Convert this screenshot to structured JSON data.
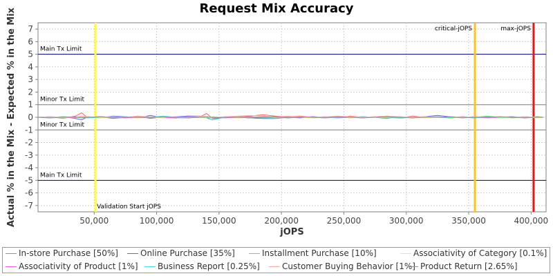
{
  "chart_data": {
    "type": "line",
    "title": "Request Mix Accuracy",
    "xlabel": "jOPS",
    "ylabel": "Actual % in the Mix - Expected % in the Mix",
    "xlim": [
      5000,
      412000
    ],
    "ylim": [
      -7.5,
      7.5
    ],
    "x_ticks": [
      50000,
      100000,
      150000,
      200000,
      250000,
      300000,
      350000,
      400000
    ],
    "x_tick_labels": [
      "50,000",
      "100,000",
      "150,000",
      "200,000",
      "250,000",
      "300,000",
      "350,000",
      "400,000"
    ],
    "y_ticks": [
      -7,
      -6,
      -5,
      -4,
      -3,
      -2,
      -1,
      0,
      1,
      2,
      3,
      4,
      5,
      6,
      7
    ],
    "y_tick_labels": [
      "-7",
      "-6",
      "-5",
      "-4",
      "-3",
      "-2",
      "-1",
      "0",
      "1",
      "2",
      "3",
      "4",
      "5",
      "6",
      "7"
    ],
    "grid": true,
    "horizontal_markers": [
      {
        "label": "Main Tx Limit",
        "y": 5,
        "color": "#000080"
      },
      {
        "label": "Minor Tx Limit",
        "y": 1,
        "color": "#808080"
      },
      {
        "label": "Minor Tx Limit",
        "y": -1,
        "color": "#808080"
      },
      {
        "label": "Main Tx Limit",
        "y": -5,
        "color": "#000080"
      }
    ],
    "vertical_markers": [
      {
        "label": "Validation Start jOPS",
        "x": 51000,
        "color": "#ffff33"
      },
      {
        "label": "critical-jOPS",
        "x": 355000,
        "color": "#ffc020"
      },
      {
        "label": "max-jOPS",
        "x": 402000,
        "color": "#e8141c"
      }
    ],
    "x": [
      5000,
      15000,
      25000,
      35000,
      40000,
      45000,
      55000,
      65000,
      75000,
      85000,
      95000,
      105000,
      115000,
      125000,
      135000,
      140000,
      145000,
      155000,
      165000,
      175000,
      185000,
      195000,
      205000,
      215000,
      225000,
      235000,
      245000,
      255000,
      265000,
      275000,
      285000,
      295000,
      305000,
      315000,
      325000,
      335000,
      345000,
      355000,
      365000,
      375000,
      385000,
      395000,
      405000,
      410000
    ],
    "series": [
      {
        "name": "In-store Purchase [50%]",
        "color": "#ff6060",
        "values": [
          0.0,
          0.05,
          -0.1,
          0.1,
          0.35,
          -0.05,
          0.05,
          -0.1,
          0.0,
          0.1,
          -0.1,
          0.05,
          0.0,
          0.1,
          0.05,
          0.3,
          -0.1,
          0.0,
          0.05,
          0.1,
          0.2,
          0.1,
          0.05,
          0.1,
          0.0,
          0.05,
          -0.05,
          0.1,
          0.0,
          0.05,
          0.1,
          -0.05,
          0.1,
          0.0,
          0.05,
          -0.05,
          0.0,
          0.05,
          0.0,
          -0.05,
          0.0,
          0.05,
          0.0,
          0.0
        ]
      },
      {
        "name": "Online Purchase [35%]",
        "color": "#6060ff",
        "values": [
          0.0,
          -0.05,
          0.05,
          -0.1,
          -0.2,
          0.05,
          -0.05,
          0.1,
          0.05,
          -0.05,
          0.15,
          -0.05,
          0.05,
          0.1,
          0.1,
          -0.05,
          -0.2,
          0.05,
          0.0,
          -0.05,
          -0.1,
          -0.1,
          0.0,
          -0.05,
          0.05,
          0.0,
          0.05,
          -0.05,
          0.05,
          0.0,
          -0.1,
          0.05,
          -0.05,
          0.05,
          0.15,
          0.05,
          0.0,
          -0.05,
          0.05,
          0.0,
          0.05,
          -0.05,
          0.05,
          0.0
        ]
      },
      {
        "name": "Installment Purchase [10%]",
        "color": "#60e060",
        "values": [
          0.0,
          0.0,
          0.05,
          0.0,
          -0.05,
          0.0,
          0.05,
          0.0,
          -0.05,
          0.05,
          0.0,
          0.05,
          -0.05,
          0.0,
          0.05,
          0.0,
          0.05,
          0.0,
          -0.05,
          0.0,
          0.05,
          0.0,
          0.0,
          0.05,
          -0.05,
          0.0,
          0.05,
          0.0,
          -0.05,
          0.0,
          0.05,
          0.0,
          0.0,
          0.05,
          0.0,
          -0.05,
          0.05,
          0.0,
          0.1,
          0.0,
          -0.05,
          0.0,
          0.05,
          0.0
        ]
      },
      {
        "name": "Associativity of Category [0.1%]",
        "color": "#f0f060",
        "values": [
          0.0,
          0.0,
          -0.05,
          0.0,
          0.05,
          0.0,
          -0.05,
          0.0,
          0.0,
          -0.05,
          0.0,
          -0.05,
          -0.1,
          -0.05,
          0.0,
          -0.05,
          0.0,
          0.0,
          -0.05,
          0.0,
          0.0,
          -0.05,
          0.0,
          0.0,
          -0.05,
          0.0,
          0.0,
          -0.05,
          0.0,
          0.0,
          -0.05,
          -0.1,
          0.0,
          -0.05,
          0.0,
          0.0,
          -0.05,
          0.0,
          0.0,
          -0.05,
          0.0,
          0.0,
          -0.05,
          0.0
        ]
      },
      {
        "name": "Associativity of Product [1%]",
        "color": "#f060f0",
        "values": [
          0.0,
          0.05,
          0.0,
          -0.05,
          0.1,
          0.0,
          0.05,
          0.0,
          -0.05,
          0.0,
          0.05,
          0.0,
          -0.05,
          0.05,
          0.0,
          0.05,
          0.0,
          -0.05,
          0.0,
          0.05,
          0.0,
          0.0,
          -0.05,
          0.0,
          0.05,
          0.0,
          -0.05,
          0.0,
          0.05,
          0.0,
          0.0,
          -0.05,
          0.0,
          0.05,
          0.0,
          0.0,
          0.05,
          0.0,
          -0.05,
          0.0,
          0.05,
          0.0,
          0.0,
          0.0
        ]
      },
      {
        "name": "Business Report [0.25%]",
        "color": "#40e0e0",
        "values": [
          0.0,
          0.0,
          0.05,
          0.0,
          0.0,
          -0.05,
          0.0,
          0.0,
          0.05,
          0.0,
          0.0,
          0.1,
          0.0,
          -0.05,
          0.0,
          0.0,
          -0.2,
          0.0,
          0.05,
          0.0,
          -0.05,
          0.0,
          0.0,
          0.05,
          0.0,
          -0.05,
          0.0,
          0.0,
          0.05,
          0.0,
          0.0,
          -0.05,
          0.0,
          0.0,
          0.05,
          0.0,
          0.0,
          -0.05,
          0.05,
          0.0,
          0.0,
          0.05,
          0.0,
          0.0
        ]
      },
      {
        "name": "Customer Buying Behavior [1%]",
        "color": "#ffb0b0",
        "values": [
          0.0,
          0.05,
          0.0,
          0.0,
          0.1,
          0.05,
          0.0,
          0.05,
          0.0,
          0.1,
          0.05,
          0.0,
          0.05,
          0.0,
          0.1,
          0.05,
          0.0,
          0.05,
          0.1,
          0.15,
          0.1,
          0.05,
          0.1,
          0.05,
          0.0,
          0.05,
          0.1,
          0.05,
          0.0,
          0.05,
          0.1,
          0.05,
          0.0,
          0.05,
          0.0,
          0.05,
          0.0,
          0.05,
          0.0,
          0.05,
          0.0,
          0.05,
          0.0,
          0.0
        ]
      },
      {
        "name": "Product Return [2.65%]",
        "color": "#909090",
        "values": [
          0.0,
          -0.05,
          0.0,
          0.05,
          -0.05,
          0.0,
          0.05,
          -0.05,
          0.0,
          0.0,
          -0.05,
          0.05,
          0.0,
          -0.05,
          0.0,
          0.05,
          -0.05,
          0.0,
          0.0,
          -0.05,
          0.0,
          0.05,
          -0.05,
          0.0,
          0.0,
          -0.05,
          0.05,
          0.0,
          -0.05,
          0.0,
          0.05,
          0.0,
          -0.05,
          0.0,
          0.0,
          0.05,
          -0.05,
          0.0,
          0.0,
          0.05,
          0.0,
          -0.05,
          0.0,
          0.0
        ]
      }
    ]
  }
}
